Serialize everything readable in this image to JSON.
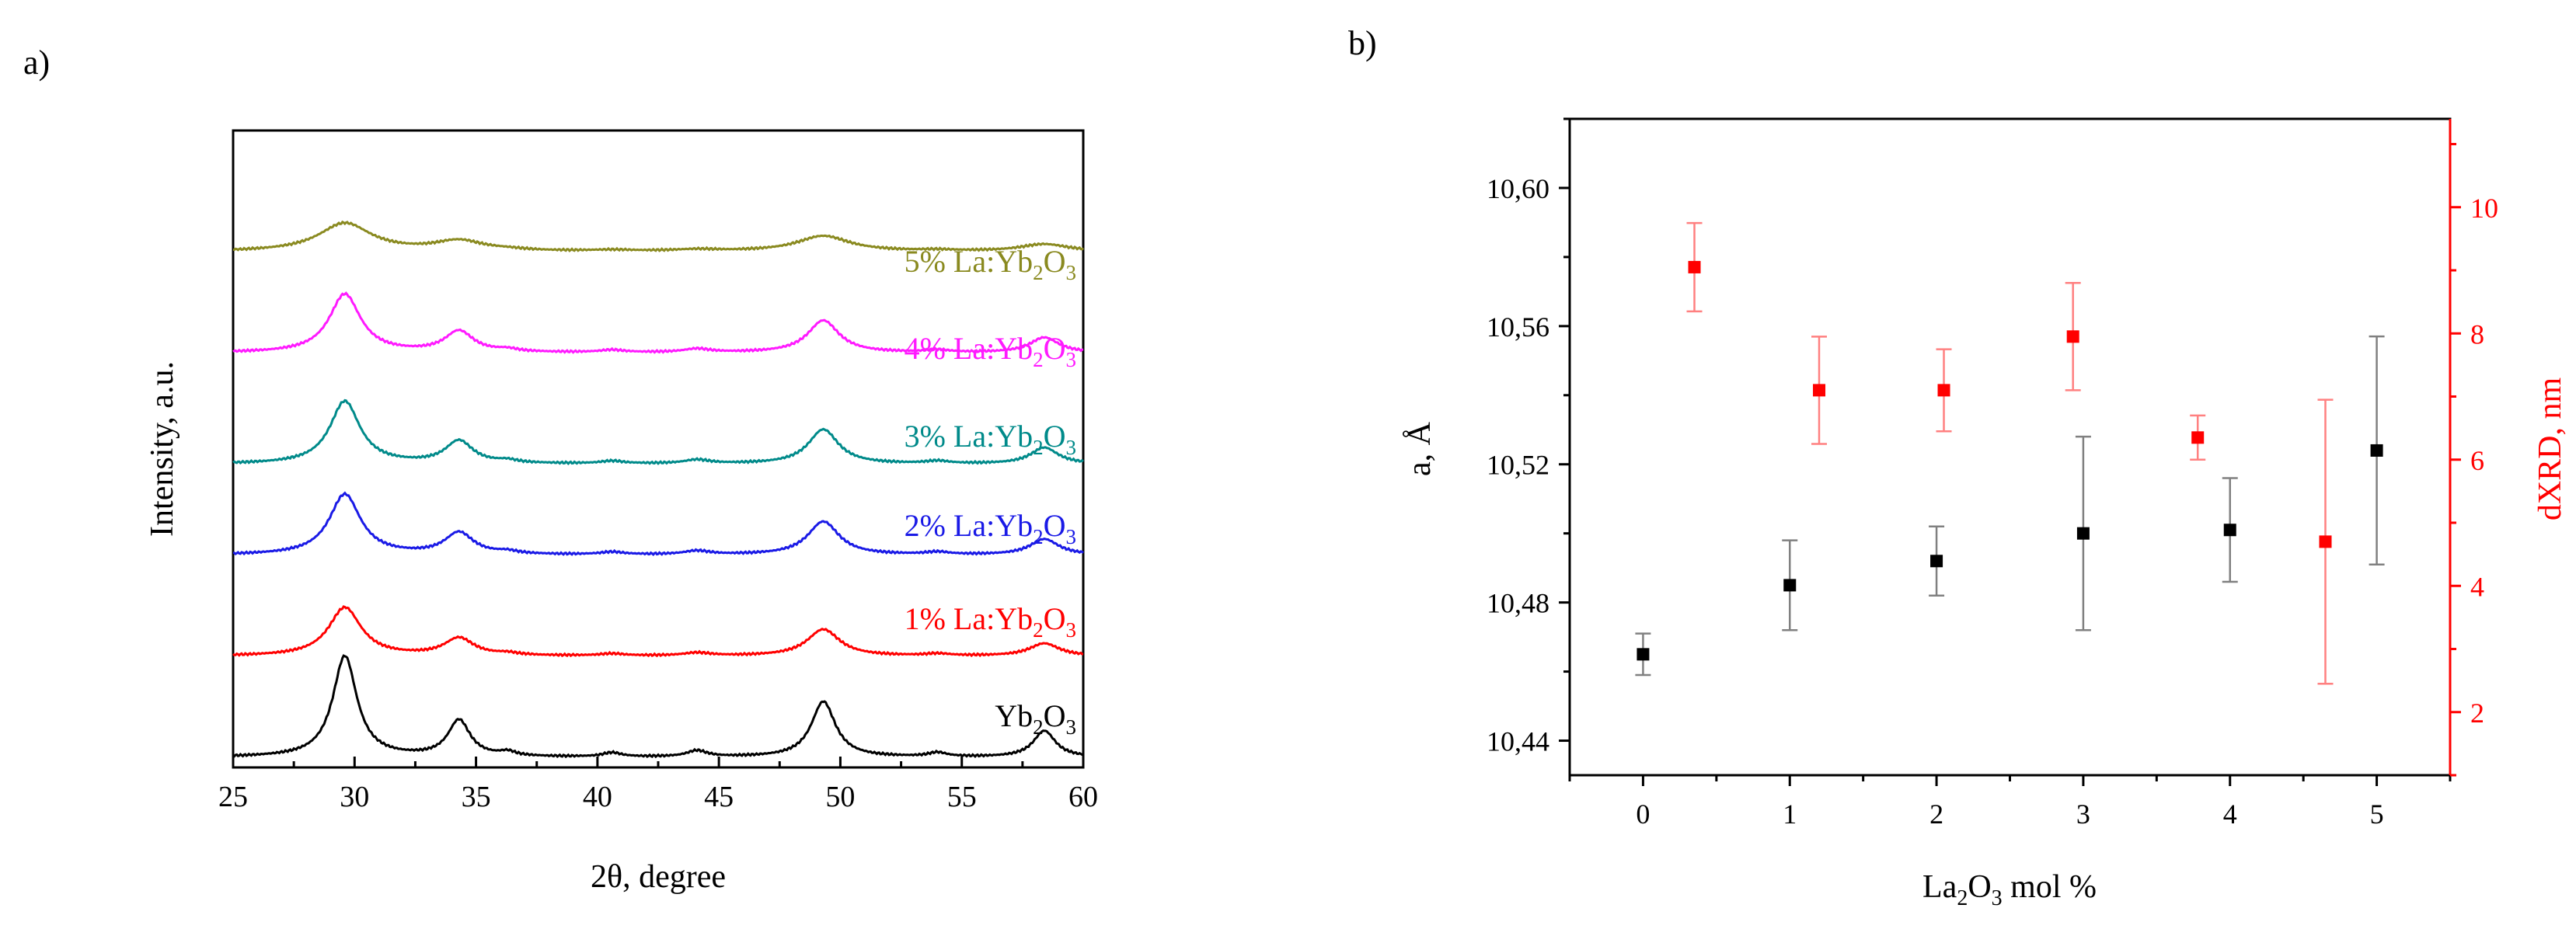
{
  "panels": {
    "a": {
      "label": "a)"
    },
    "b": {
      "label": "b)"
    }
  },
  "chart_data": [
    {
      "type": "line",
      "title": "",
      "xlabel": "2θ, degree",
      "ylabel": "Intensity,  a.u.",
      "xlim": [
        25,
        60
      ],
      "xticks": [
        "25",
        "30",
        "35",
        "40",
        "45",
        "50",
        "55",
        "60"
      ],
      "x_tick_values": [
        25,
        30,
        35,
        40,
        45,
        50,
        55,
        60
      ],
      "yticks": [],
      "peaks": [
        {
          "center": 29.6,
          "height": 1.0,
          "width": 0.6
        },
        {
          "center": 34.3,
          "height": 0.36,
          "width": 0.55
        },
        {
          "center": 36.3,
          "height": 0.04,
          "width": 0.4
        },
        {
          "center": 40.6,
          "height": 0.04,
          "width": 0.45
        },
        {
          "center": 44.1,
          "height": 0.06,
          "width": 0.5
        },
        {
          "center": 49.3,
          "height": 0.55,
          "width": 0.6
        },
        {
          "center": 54.0,
          "height": 0.04,
          "width": 0.45
        },
        {
          "center": 58.4,
          "height": 0.26,
          "width": 0.55
        }
      ],
      "series": [
        {
          "name": "Yb2O3",
          "label_main": "Yb",
          "label_sub1": "2",
          "label_mid": "O",
          "label_sub2": "3",
          "color": "#000000",
          "baseline": 0.0,
          "scale": 1.0,
          "width_factor": 1.0,
          "offset": 0.0
        },
        {
          "name": "1% La:Yb2O3",
          "label_main": "1% La:Yb",
          "label_sub1": "2",
          "label_mid": "O",
          "label_sub2": "3",
          "color": "#ff0000",
          "baseline": 1.0,
          "scale": 0.48,
          "width_factor": 1.35,
          "offset": 0.0
        },
        {
          "name": "2% La:Yb2O3",
          "label_main": "2% La:Yb",
          "label_sub1": "2",
          "label_mid": "O",
          "label_sub2": "3",
          "color": "#1a1ae6",
          "baseline": 2.0,
          "scale": 0.6,
          "width_factor": 1.3,
          "offset": 0.0
        },
        {
          "name": "3% La:Yb2O3",
          "label_main": "3% La:Yb",
          "label_sub1": "2",
          "label_mid": "O",
          "label_sub2": "3",
          "color": "#008a8a",
          "baseline": 3.0,
          "scale": 0.62,
          "width_factor": 1.25,
          "offset": -0.1
        },
        {
          "name": "4% La:Yb2O3",
          "label_main": "4% La:Yb",
          "label_sub1": "2",
          "label_mid": "O",
          "label_sub2": "3",
          "color": "#ff1aff",
          "baseline": 4.0,
          "scale": 0.58,
          "width_factor": 1.3,
          "offset": 0.0
        },
        {
          "name": "5% La:Yb2O3",
          "label_main": "5% La:Yb",
          "label_sub1": "2",
          "label_mid": "O",
          "label_sub2": "3",
          "color": "#8a8a20",
          "baseline": 5.0,
          "scale": 0.28,
          "width_factor": 2.2,
          "offset": 0.0
        }
      ],
      "ylim": [
        -0.1,
        6.2
      ]
    },
    {
      "type": "scatter",
      "title": "",
      "xlabel_main": "La",
      "xlabel_sub": "2",
      "xlabel_rest": "O",
      "xlabel_sub2": "3",
      "xlabel_tail": " mol %",
      "ylabel": "a, Å",
      "ylabel_right": "dXRD, nm",
      "xlim": [
        -0.5,
        5.5
      ],
      "xticks": [
        "0",
        "1",
        "2",
        "3",
        "4",
        "5"
      ],
      "x_tick_values": [
        0,
        1,
        2,
        3,
        4,
        5
      ],
      "ylim": [
        10.43,
        10.62
      ],
      "yticks": [
        "10,44",
        "10,48",
        "10,52",
        "10,56",
        "10,60"
      ],
      "y_tick_values": [
        10.44,
        10.48,
        10.52,
        10.56,
        10.6
      ],
      "ylim_right": [
        1,
        11.4
      ],
      "yticks_right": [
        "2",
        "4",
        "6",
        "8",
        "10"
      ],
      "y_tick_values_right": [
        2,
        4,
        6,
        8,
        10
      ],
      "series": [
        {
          "name": "a",
          "axis": "left",
          "color": "#000000",
          "points": [
            {
              "x": 0,
              "y": 10.465,
              "err": 0.006
            },
            {
              "x": 1,
              "y": 10.485,
              "err": 0.013
            },
            {
              "x": 2,
              "y": 10.492,
              "err": 0.01
            },
            {
              "x": 3,
              "y": 10.5,
              "err": 0.028
            },
            {
              "x": 4,
              "y": 10.501,
              "err": 0.015
            },
            {
              "x": 5,
              "y": 10.524,
              "err": 0.033
            }
          ]
        },
        {
          "name": "dXRD",
          "axis": "right",
          "color": "#ff0000",
          "points": [
            {
              "x": 0.35,
              "y": 9.05,
              "err": 0.7
            },
            {
              "x": 1.2,
              "y": 7.1,
              "err": 0.85
            },
            {
              "x": 2.05,
              "y": 7.1,
              "err": 0.65
            },
            {
              "x": 2.93,
              "y": 7.95,
              "err": 0.85
            },
            {
              "x": 3.78,
              "y": 6.35,
              "err": 0.35
            },
            {
              "x": 4.65,
              "y": 4.7,
              "err": 2.25
            }
          ]
        }
      ]
    }
  ]
}
